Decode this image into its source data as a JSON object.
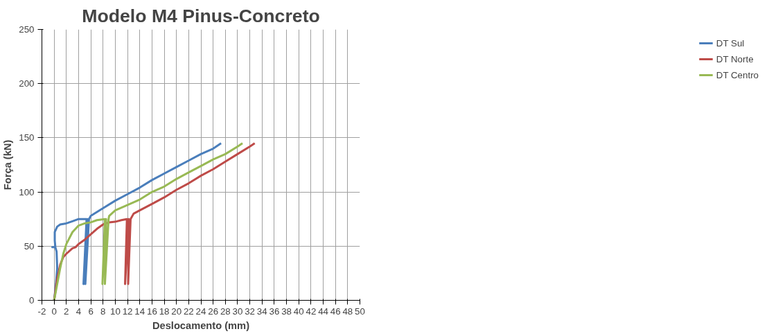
{
  "chart_data": {
    "type": "line",
    "title": "Modelo M4 Pinus-Concreto",
    "xlabel": "Deslocamento (mm)",
    "ylabel": "Força (kN)",
    "xlim": [
      -2,
      50
    ],
    "xticks": [
      -2,
      0,
      2,
      4,
      6,
      8,
      10,
      12,
      14,
      16,
      18,
      20,
      22,
      24,
      26,
      28,
      30,
      32,
      34,
      36,
      38,
      40,
      42,
      44,
      46,
      48,
      50
    ],
    "ylim": [
      0,
      250
    ],
    "yticks": [
      0,
      50,
      100,
      150,
      200,
      250
    ],
    "grid": true,
    "legend": "right",
    "marker": "none",
    "line_style": "solid",
    "series": [
      {
        "name": "DT Sul",
        "color": "#4a7ebb",
        "x": [
          0,
          0.3,
          0.5,
          0.4,
          0.2,
          -0.3,
          0.2,
          0.1,
          0.1,
          0.5,
          1,
          2,
          3,
          4,
          5.3,
          4.8,
          5.5,
          5.1,
          5.7,
          6,
          8,
          10,
          12,
          14,
          16,
          18,
          20,
          22,
          24,
          26,
          27.3
        ],
        "values": [
          0,
          15,
          30,
          45,
          49,
          49,
          49,
          55,
          63,
          68,
          70,
          71,
          73,
          75,
          75,
          15,
          75,
          15,
          75,
          78,
          85,
          92,
          98,
          104,
          111,
          117,
          123,
          129,
          135,
          140,
          145
        ]
      },
      {
        "name": "DT Norte",
        "color": "#be4b48",
        "x": [
          0,
          0.5,
          1,
          1.5,
          2,
          3,
          3.5,
          4,
          5,
          6,
          7,
          8,
          9,
          10,
          11,
          11.9,
          11.6,
          12.2,
          12.1,
          12.5,
          13,
          14,
          16,
          18,
          20,
          22,
          24,
          26,
          28,
          30,
          32,
          32.8
        ],
        "values": [
          0,
          20,
          33,
          40,
          43,
          48,
          49,
          52,
          56,
          61,
          66,
          70,
          72,
          72.5,
          74,
          75,
          15,
          75,
          15,
          75,
          80,
          83,
          89,
          95,
          102,
          108,
          115,
          121,
          128,
          135,
          142,
          145
        ]
      },
      {
        "name": "DT Centro",
        "color": "#98b954",
        "x": [
          0,
          0.5,
          1,
          1.5,
          2,
          3,
          4,
          5,
          6,
          7,
          8.3,
          7.9,
          8.5,
          8.3,
          8.9,
          9,
          10,
          12,
          14,
          16,
          18,
          20,
          22,
          24,
          26,
          28,
          30,
          30.8
        ],
        "values": [
          0,
          15,
          30,
          43,
          52,
          63,
          69,
          71,
          72,
          74,
          75,
          15,
          75,
          15,
          75,
          78,
          83,
          88,
          93,
          100,
          105,
          112,
          118,
          124,
          130,
          135,
          142,
          145
        ]
      }
    ]
  }
}
